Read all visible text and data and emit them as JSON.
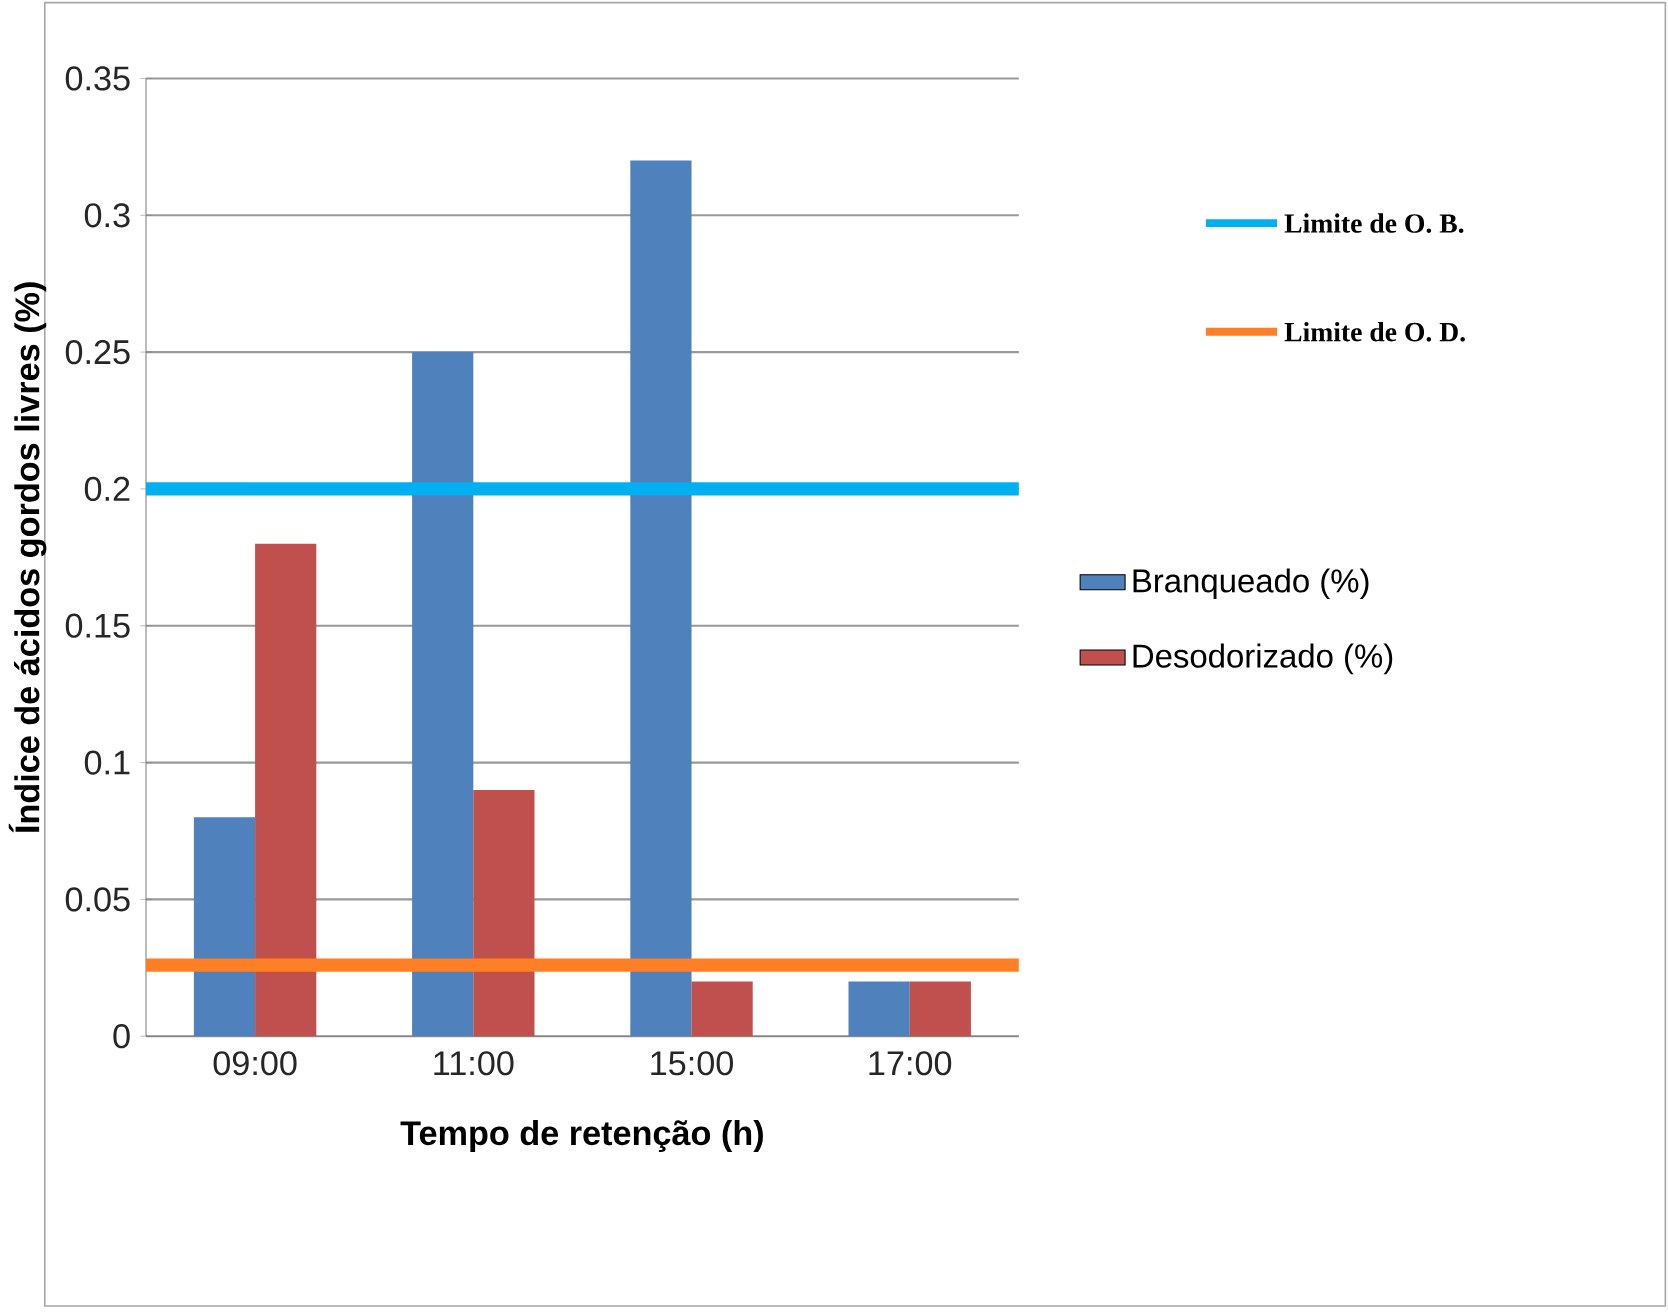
{
  "chart_data": {
    "type": "bar",
    "xlabel": "Tempo de retenção (h)",
    "ylabel": "Índice de ácidos gordos livres (%)",
    "categories": [
      "09:00",
      "11:00",
      "15:00",
      "17:00"
    ],
    "series": [
      {
        "name": "Branqueado (%)",
        "color": "#4f81bd",
        "values": [
          0.08,
          0.25,
          0.32,
          0.02
        ]
      },
      {
        "name": "Desodorizado (%)",
        "color": "#c0504d",
        "values": [
          0.18,
          0.09,
          0.02,
          0.02
        ]
      }
    ],
    "ylim": [
      0,
      0.35
    ],
    "yticks": [
      0,
      0.05,
      0.1,
      0.15,
      0.2,
      0.25,
      0.3,
      0.35
    ],
    "grid": "y",
    "legend": "right",
    "ref_lines": [
      {
        "axis": "y",
        "value": 0.2,
        "label": "Limite de O. B.",
        "color": "#00b0f0"
      },
      {
        "axis": "y",
        "value": 0.026,
        "label": "Limite de O. D.",
        "color": "#ff7f27"
      }
    ]
  }
}
